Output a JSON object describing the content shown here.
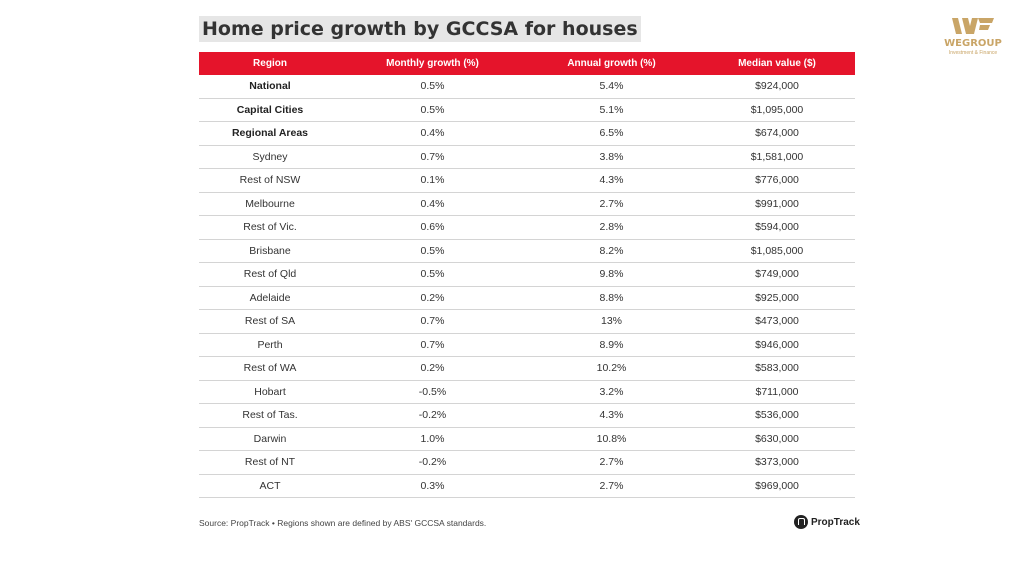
{
  "title": "Home price growth by GCCSA for houses",
  "table": {
    "headers": [
      "Region",
      "Monthly growth (%)",
      "Annual growth (%)",
      "Median value ($)"
    ],
    "rows": [
      {
        "region": "National",
        "monthly": "0.5%",
        "annual": "5.4%",
        "median": "$924,000",
        "bold": true
      },
      {
        "region": "Capital Cities",
        "monthly": "0.5%",
        "annual": "5.1%",
        "median": "$1,095,000",
        "bold": true
      },
      {
        "region": "Regional Areas",
        "monthly": "0.4%",
        "annual": "6.5%",
        "median": "$674,000",
        "bold": true
      },
      {
        "region": "Sydney",
        "monthly": "0.7%",
        "annual": "3.8%",
        "median": "$1,581,000",
        "bold": false
      },
      {
        "region": "Rest of NSW",
        "monthly": "0.1%",
        "annual": "4.3%",
        "median": "$776,000",
        "bold": false
      },
      {
        "region": "Melbourne",
        "monthly": "0.4%",
        "annual": "2.7%",
        "median": "$991,000",
        "bold": false
      },
      {
        "region": "Rest of Vic.",
        "monthly": "0.6%",
        "annual": "2.8%",
        "median": "$594,000",
        "bold": false
      },
      {
        "region": "Brisbane",
        "monthly": "0.5%",
        "annual": "8.2%",
        "median": "$1,085,000",
        "bold": false
      },
      {
        "region": "Rest of Qld",
        "monthly": "0.5%",
        "annual": "9.8%",
        "median": "$749,000",
        "bold": false
      },
      {
        "region": "Adelaide",
        "monthly": "0.2%",
        "annual": "8.8%",
        "median": "$925,000",
        "bold": false
      },
      {
        "region": "Rest of SA",
        "monthly": "0.7%",
        "annual": "13%",
        "median": "$473,000",
        "bold": false
      },
      {
        "region": "Perth",
        "monthly": "0.7%",
        "annual": "8.9%",
        "median": "$946,000",
        "bold": false
      },
      {
        "region": "Rest of WA",
        "monthly": "0.2%",
        "annual": "10.2%",
        "median": "$583,000",
        "bold": false
      },
      {
        "region": "Hobart",
        "monthly": "-0.5%",
        "annual": "3.2%",
        "median": "$711,000",
        "bold": false
      },
      {
        "region": "Rest of Tas.",
        "monthly": "-0.2%",
        "annual": "4.3%",
        "median": "$536,000",
        "bold": false
      },
      {
        "region": "Darwin",
        "monthly": "1.0%",
        "annual": "10.8%",
        "median": "$630,000",
        "bold": false
      },
      {
        "region": "Rest of NT",
        "monthly": "-0.2%",
        "annual": "2.7%",
        "median": "$373,000",
        "bold": false
      },
      {
        "region": "ACT",
        "monthly": "0.3%",
        "annual": "2.7%",
        "median": "$969,000",
        "bold": false
      }
    ]
  },
  "source": "Source: PropTrack • Regions shown are defined by ABS' GCCSA standards.",
  "proptrack": {
    "label": "PropTrack",
    "icon": "proptrack-house-icon"
  },
  "wegroup": {
    "name": "WEGROUP",
    "tagline": "Investment & Finance",
    "icon": "wegroup-logo-icon"
  },
  "colors": {
    "header_red": "#e5142b",
    "gold": "#c9a567",
    "title_bg": "#e6e6e6"
  }
}
